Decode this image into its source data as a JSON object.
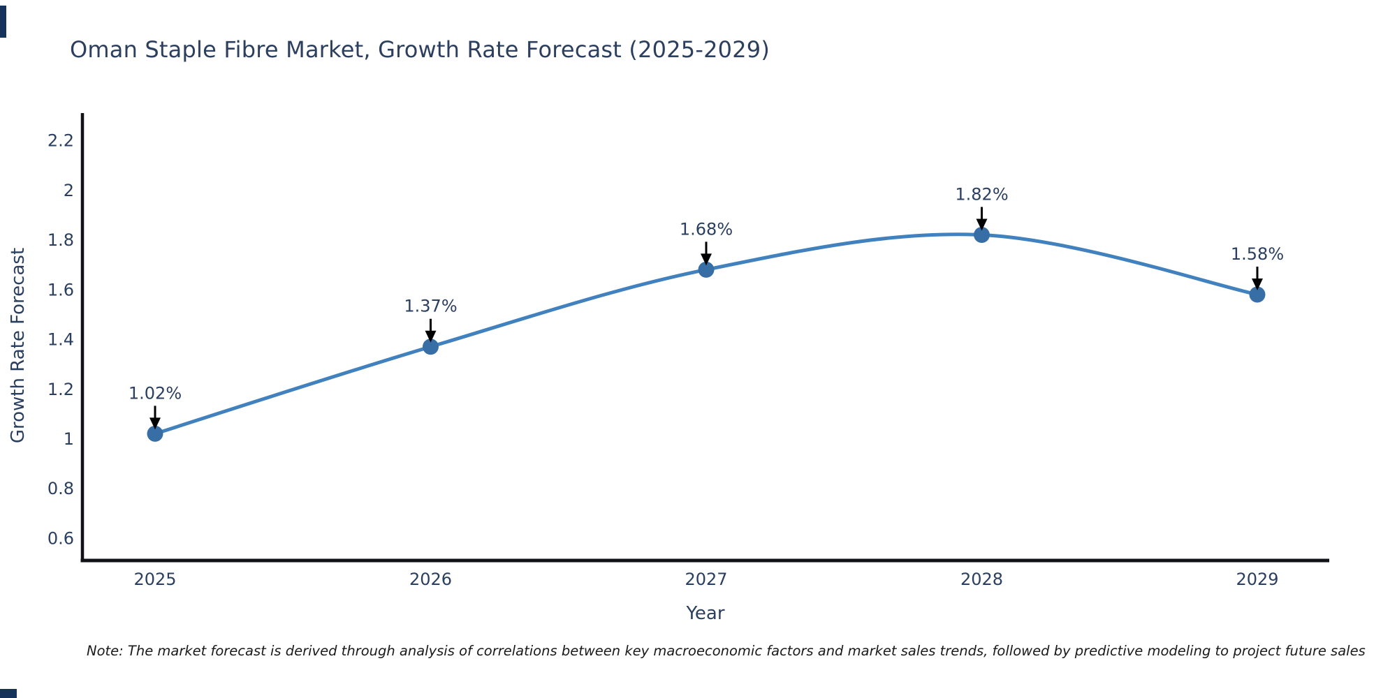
{
  "title": "Oman Staple Fibre Market, Growth Rate Forecast (2025-2029)",
  "note": "Note: The market forecast is derived through analysis of correlations between key macroeconomic factors and market sales trends, followed by predictive modeling to project future sales",
  "chart_data": {
    "type": "line",
    "title": "Oman Staple Fibre Market, Growth Rate Forecast (2025-2029)",
    "x": [
      2025,
      2026,
      2027,
      2028,
      2029
    ],
    "y": [
      1.02,
      1.37,
      1.68,
      1.82,
      1.58
    ],
    "point_labels": [
      "1.02%",
      "1.37%",
      "1.68%",
      "1.82%",
      "1.58%"
    ],
    "xlabel": "Year",
    "ylabel": "Growth Rate Forecast",
    "yticks": [
      0.6,
      0.8,
      1,
      1.2,
      1.4,
      1.6,
      1.8,
      2,
      2.2
    ],
    "ylim": [
      0.51,
      2.31
    ],
    "line_shape": "spline",
    "grid": false,
    "legend": false,
    "markers": true,
    "annotations": "value labels with down arrows above each point",
    "colors": {
      "line": "#4181bd",
      "marker": "#386ea6",
      "arrow": "#000000",
      "axis": "#111118",
      "text": "#2a3f5f",
      "title": "#2c3f5e",
      "note_text": "#1a1a1a",
      "corner_mark": "#16335b",
      "background": "#ffffff"
    }
  }
}
